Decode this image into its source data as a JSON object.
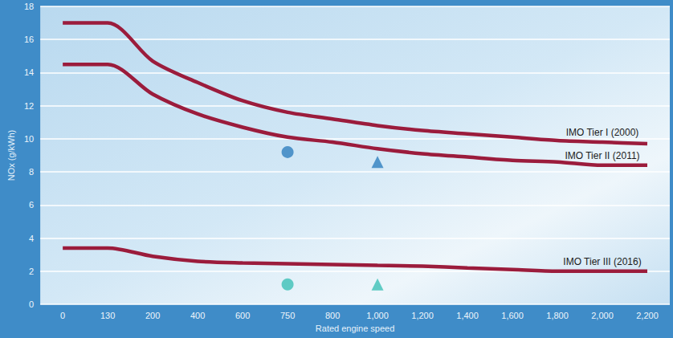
{
  "chart_data": {
    "type": "line",
    "x_label": "Rated engine speed",
    "y_label": "NOx (g/kWh)",
    "categories": [
      "0",
      "130",
      "200",
      "400",
      "600",
      "750",
      "800",
      "1,000",
      "1,200",
      "1,400",
      "1,600",
      "1,800",
      "2,000",
      "2,200"
    ],
    "series": [
      {
        "name": "IMO Tier I (2000)",
        "color": "#9b1c3c",
        "values": [
          17,
          17,
          14.7,
          13.4,
          12.3,
          11.6,
          11.2,
          10.8,
          10.5,
          10.3,
          10.1,
          9.9,
          9.8,
          9.7
        ]
      },
      {
        "name": "IMO Tier II (2011)",
        "color": "#9b1c3c",
        "values": [
          14.5,
          14.5,
          12.7,
          11.5,
          10.7,
          10.1,
          9.8,
          9.4,
          9.1,
          8.9,
          8.7,
          8.6,
          8.4,
          8.4
        ]
      },
      {
        "name": "IMO Tier III (2016)",
        "color": "#9b1c3c",
        "values": [
          3.4,
          3.4,
          2.9,
          2.6,
          2.5,
          2.45,
          2.4,
          2.35,
          2.3,
          2.2,
          2.1,
          2.0,
          2.0,
          2.0
        ]
      },
      {
        "type": "scatter",
        "marker": "circle",
        "color": "#2f7fbf",
        "values": [
          null,
          null,
          null,
          null,
          null,
          9.2,
          null,
          null,
          null,
          null,
          null,
          null,
          null,
          null
        ]
      },
      {
        "type": "scatter",
        "marker": "triangle",
        "color": "#2f7fbf",
        "values": [
          null,
          null,
          null,
          null,
          null,
          null,
          null,
          8.6,
          null,
          null,
          null,
          null,
          null,
          null
        ]
      },
      {
        "type": "scatter",
        "marker": "circle",
        "color": "#3cc0b6",
        "values": [
          null,
          null,
          null,
          null,
          null,
          1.2,
          null,
          null,
          null,
          null,
          null,
          null,
          null,
          null
        ]
      },
      {
        "type": "scatter",
        "marker": "triangle",
        "color": "#3cc0b6",
        "values": [
          null,
          null,
          null,
          null,
          null,
          null,
          null,
          1.2,
          null,
          null,
          null,
          null,
          null,
          null
        ]
      }
    ],
    "ylim": [
      0,
      18
    ],
    "yticks": [
      0,
      2,
      4,
      6,
      8,
      10,
      12,
      14,
      16,
      18
    ],
    "grid": true
  }
}
